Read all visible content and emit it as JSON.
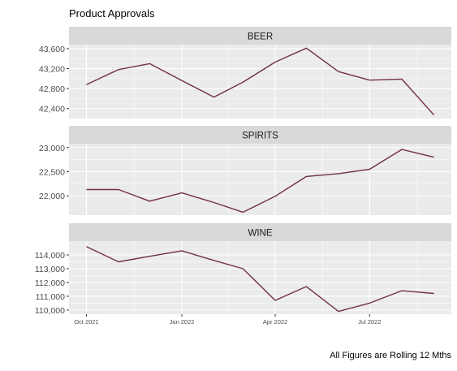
{
  "chart_data": {
    "type": "line",
    "title": "Product Approvals",
    "caption": "All Figures are Rolling 12 Mths",
    "x": [
      "2021-10-01",
      "2021-11-01",
      "2021-12-01",
      "2022-01-01",
      "2022-02-01",
      "2022-03-01",
      "2022-04-01",
      "2022-05-01",
      "2022-06-01",
      "2022-07-01",
      "2022-08-01",
      "2022-09-01"
    ],
    "x_ticks": [
      "Oct 2021",
      "Jan 2022",
      "Apr 2022",
      "Jul 2022"
    ],
    "x_tick_dates": [
      "2021-10-01",
      "2022-01-01",
      "2022-04-01",
      "2022-07-01"
    ],
    "line_color": "#722F4E",
    "panel_background": "#EBEBEB",
    "strip_background": "#D9D9D9",
    "grid": true,
    "facets": [
      {
        "name": "BEER",
        "values": [
          42880,
          43180,
          43300,
          42960,
          42630,
          42930,
          43330,
          43610,
          43140,
          42970,
          42990,
          42270
        ],
        "ylim": [
          42200,
          43680
        ],
        "yticks": [
          42400,
          42800,
          43200,
          43600
        ],
        "ytick_labels": [
          "42,400",
          "42,800",
          "43,200",
          "43,600"
        ]
      },
      {
        "name": "SPIRITS",
        "values": [
          22130,
          22130,
          21890,
          22060,
          21860,
          21660,
          21990,
          22400,
          22460,
          22550,
          22960,
          22800
        ],
        "ylim": [
          21600,
          23080
        ],
        "yticks": [
          22000,
          22500,
          23000
        ],
        "ytick_labels": [
          "22,000",
          "22,500",
          "23,000"
        ]
      },
      {
        "name": "WINE",
        "values": [
          114600,
          113500,
          113900,
          114300,
          113600,
          113000,
          110700,
          111700,
          109900,
          110500,
          111400,
          111200
        ],
        "ylim": [
          109700,
          115000
        ],
        "yticks": [
          110000,
          111000,
          112000,
          113000,
          114000
        ],
        "ytick_labels": [
          "110,000",
          "111,000",
          "112,000",
          "113,000",
          "114,000"
        ]
      }
    ]
  }
}
